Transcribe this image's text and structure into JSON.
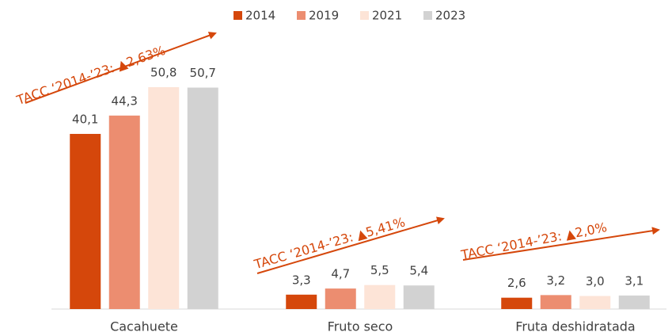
{
  "chart_data": {
    "type": "bar",
    "categories": [
      "Cacahuete",
      "Fruto seco",
      "Fruta deshidratada"
    ],
    "series": [
      {
        "name": "2014",
        "color": "#d5470b",
        "values": [
          40.1,
          3.3,
          2.6
        ],
        "value_labels": [
          "40,1",
          "3,3",
          "2,6"
        ]
      },
      {
        "name": "2019",
        "color": "#ec8d70",
        "values": [
          44.3,
          4.7,
          3.2
        ],
        "value_labels": [
          "44,3",
          "4,7",
          "3,2"
        ]
      },
      {
        "name": "2021",
        "color": "#fde4d7",
        "values": [
          50.8,
          5.5,
          3.0
        ],
        "value_labels": [
          "50,8",
          "5,5",
          "3,0"
        ]
      },
      {
        "name": "2023",
        "color": "#d2d2d2",
        "values": [
          50.7,
          5.4,
          3.1
        ],
        "value_labels": [
          "50,7",
          "5,4",
          "3,1"
        ]
      }
    ],
    "annotations": [
      "TACC ‘2014-’23: ▲2,63%",
      "TACC ‘2014-’23: ▲5,41%",
      "TACC ‘2014-’23: ▲2,0%"
    ]
  }
}
